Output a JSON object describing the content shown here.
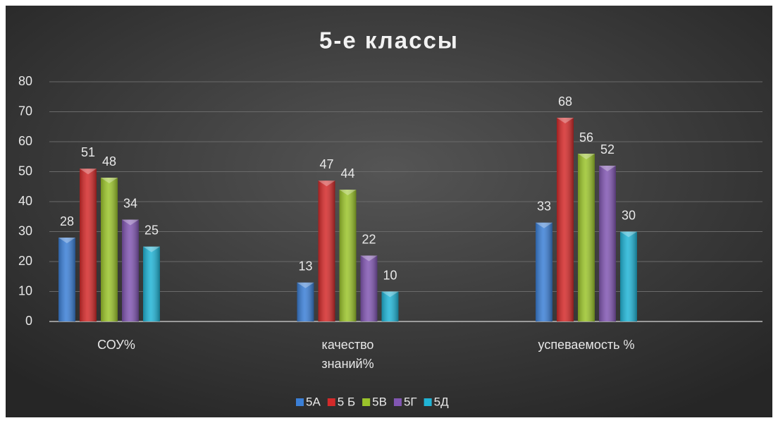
{
  "chart_data": {
    "type": "bar",
    "title": "5-е классы",
    "categories": [
      "СОУ%",
      "качество знаний%",
      "успеваемость %"
    ],
    "series": [
      {
        "name": "5А",
        "color": "#3b7fd6",
        "values": [
          28,
          13,
          33
        ]
      },
      {
        "name": "5 Б",
        "color": "#d42a2a",
        "values": [
          51,
          47,
          68
        ]
      },
      {
        "name": "5В",
        "color": "#9bc42b",
        "values": [
          48,
          44,
          56
        ]
      },
      {
        "name": "5Г",
        "color": "#8156b2",
        "values": [
          34,
          22,
          52
        ]
      },
      {
        "name": "5Д",
        "color": "#20b4d6",
        "values": [
          25,
          10,
          30
        ]
      }
    ],
    "ylim": [
      0,
      80
    ],
    "yticks": [
      0,
      10,
      20,
      30,
      40,
      50,
      60,
      70,
      80
    ],
    "grid": true,
    "legend": "bottom"
  }
}
